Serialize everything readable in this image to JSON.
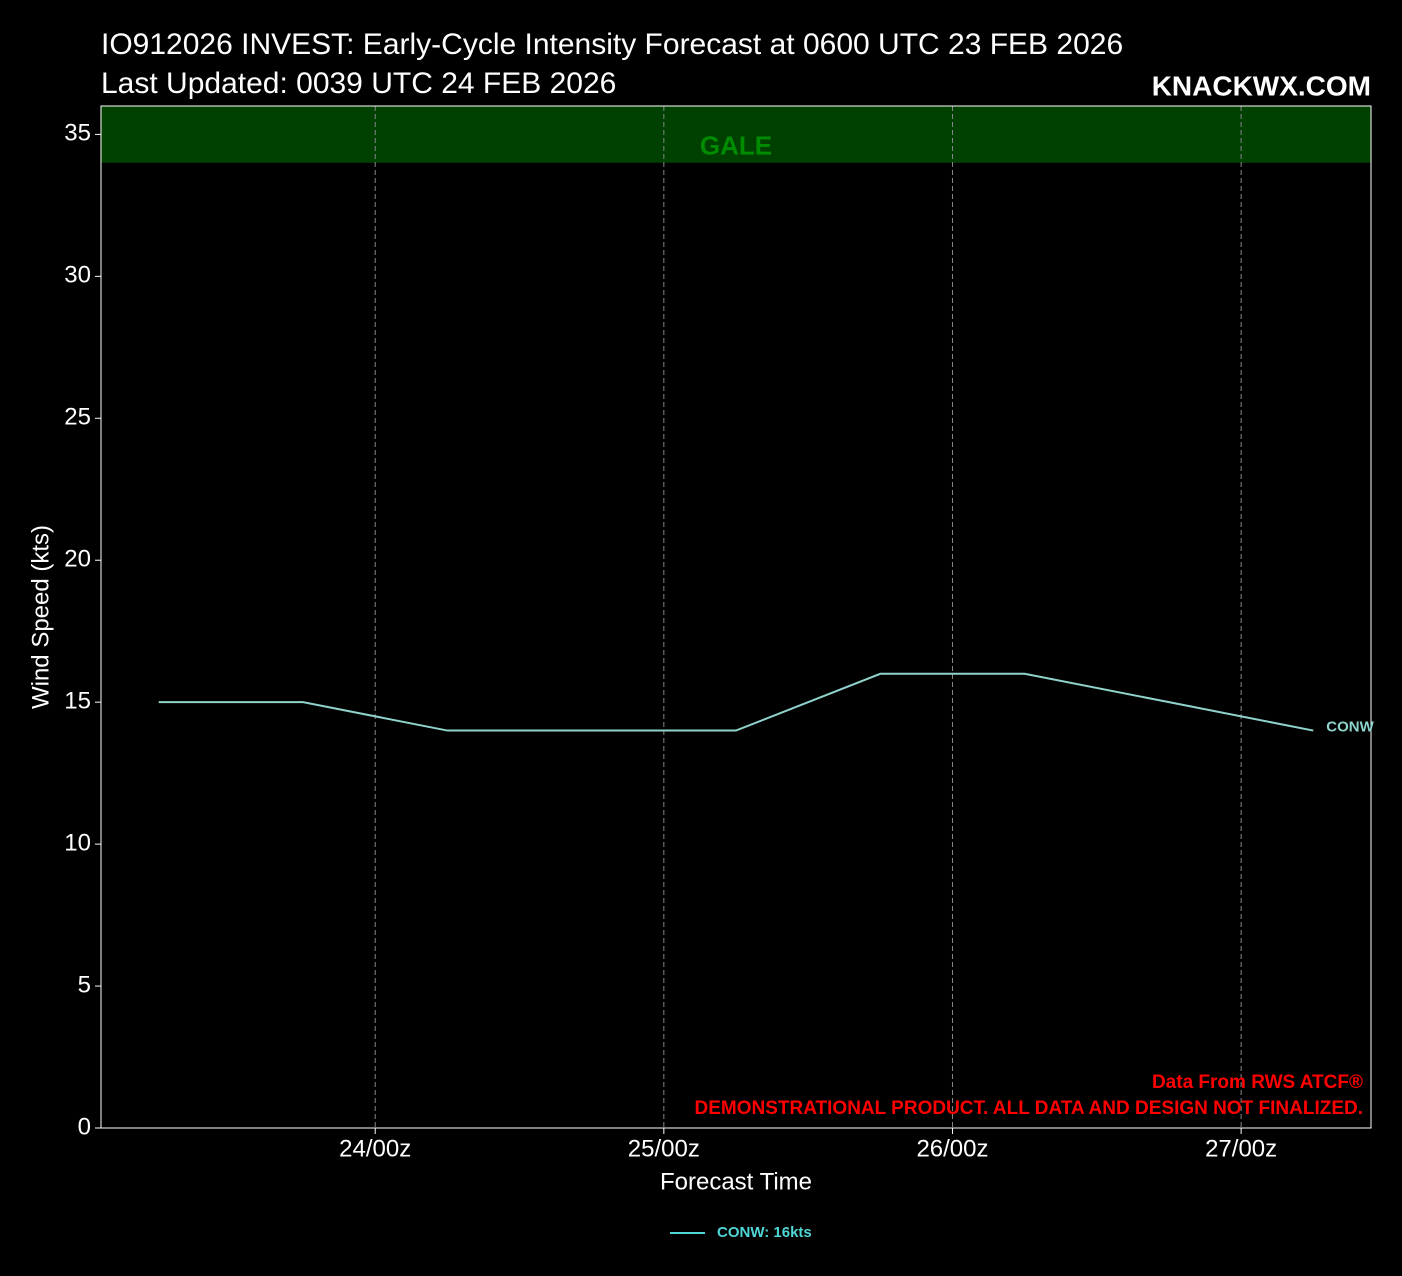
{
  "chart_data": {
    "type": "line",
    "title": "IO912026 INVEST: Early-Cycle Intensity Forecast at 0600 UTC 23 FEB 2026",
    "subtitle": "Last Updated: 0039 UTC 24 FEB 2026",
    "watermark": "KNACKWX.COM",
    "xlabel": "Forecast Time",
    "ylabel": "Wind Speed (kts)",
    "x": [
      0,
      12,
      24,
      36,
      48,
      60,
      72,
      84,
      96
    ],
    "series": [
      {
        "name": "CONW",
        "legend_label": "CONW: 16kts",
        "color": "#8fd3cc",
        "legend_color": "#4fd6d6",
        "values": [
          15,
          15,
          14,
          14,
          14,
          16,
          16,
          15,
          14
        ]
      }
    ],
    "xlim": [
      -4.8,
      100.8
    ],
    "xticks": [
      {
        "value": 18,
        "label": "24/00z"
      },
      {
        "value": 42,
        "label": "25/00z"
      },
      {
        "value": 66,
        "label": "26/00z"
      },
      {
        "value": 90,
        "label": "27/00z"
      }
    ],
    "ylim": [
      0,
      36
    ],
    "yticks": [
      0,
      5,
      10,
      15,
      20,
      25,
      30,
      35
    ],
    "grid": "x",
    "bands": [
      {
        "label": "GALE",
        "from": 34,
        "to": 36,
        "color": "#004000",
        "text_color": "#008c00"
      }
    ],
    "annotations": [
      "Data From RWS ATCF®",
      "DEMONSTRATIONAL PRODUCT. ALL DATA AND DESIGN NOT FINALIZED."
    ],
    "annotation_color": "#ff0000"
  }
}
